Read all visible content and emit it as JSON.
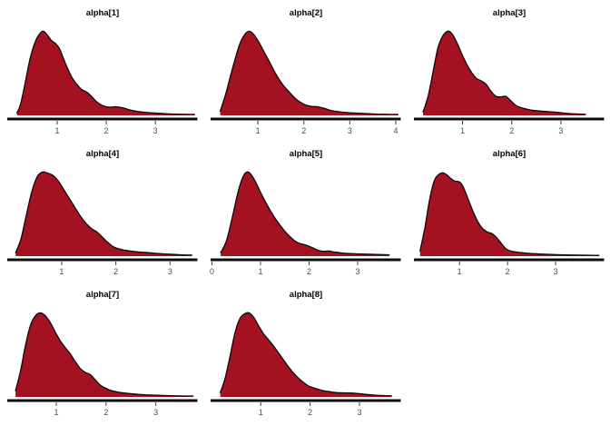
{
  "figure": {
    "background": "#ffffff",
    "rows": 3,
    "cols": 3
  },
  "chart_data": {
    "type": "area",
    "subtype": "density-small-multiples",
    "legend": "none",
    "grid_lines": "off",
    "style": {
      "fill_color": "#A41121",
      "outline_color": "#0a0a0a",
      "axis_line_color": "#0d0d0d",
      "tick_mark_color": "#404040",
      "tick_label_color": "#4d4d4d",
      "title_color": "#000000",
      "background_color": "#ffffff"
    },
    "panels": [
      {
        "title": "alpha[1]",
        "x_ticks": [
          1,
          2,
          3
        ],
        "x_range": [
          0.02,
          3.83
        ],
        "density": {
          "x": [
            0.18,
            0.25,
            0.35,
            0.45,
            0.55,
            0.65,
            0.72,
            0.8,
            0.88,
            0.97,
            1.05,
            1.12,
            1.2,
            1.3,
            1.4,
            1.5,
            1.6,
            1.7,
            1.8,
            1.9,
            2.0,
            2.1,
            2.2,
            2.35,
            2.5,
            2.7,
            2.9,
            3.2,
            3.5,
            3.8
          ],
          "y": [
            0.03,
            0.12,
            0.38,
            0.66,
            0.85,
            0.95,
            0.975,
            0.93,
            0.87,
            0.83,
            0.77,
            0.67,
            0.56,
            0.44,
            0.36,
            0.3,
            0.27,
            0.22,
            0.16,
            0.12,
            0.1,
            0.095,
            0.1,
            0.085,
            0.06,
            0.04,
            0.03,
            0.02,
            0.013,
            0.01
          ]
        }
      },
      {
        "title": "alpha[2]",
        "x_ticks": [
          1,
          2,
          3,
          4
        ],
        "x_range": [
          0.01,
          4.08
        ],
        "density": {
          "x": [
            0.18,
            0.3,
            0.45,
            0.6,
            0.72,
            0.82,
            0.92,
            1.02,
            1.12,
            1.25,
            1.4,
            1.55,
            1.7,
            1.85,
            2.0,
            2.15,
            2.3,
            2.45,
            2.6,
            2.8,
            3.0,
            3.3,
            3.6,
            3.85,
            4.05
          ],
          "y": [
            0.05,
            0.25,
            0.55,
            0.82,
            0.94,
            0.975,
            0.93,
            0.85,
            0.75,
            0.62,
            0.47,
            0.35,
            0.26,
            0.18,
            0.13,
            0.105,
            0.1,
            0.08,
            0.055,
            0.04,
            0.03,
            0.022,
            0.015,
            0.012,
            0.01
          ]
        }
      },
      {
        "title": "alpha[3]",
        "x_ticks": [
          1,
          2,
          3
        ],
        "x_range": [
          0.05,
          3.85
        ],
        "density": {
          "x": [
            0.2,
            0.3,
            0.4,
            0.5,
            0.6,
            0.7,
            0.78,
            0.88,
            0.98,
            1.08,
            1.18,
            1.28,
            1.38,
            1.48,
            1.58,
            1.68,
            1.78,
            1.88,
            1.98,
            2.1,
            2.25,
            2.4,
            2.6,
            2.8,
            3.0,
            3.2,
            3.5
          ],
          "y": [
            0.04,
            0.22,
            0.5,
            0.78,
            0.92,
            0.975,
            0.95,
            0.85,
            0.72,
            0.6,
            0.5,
            0.43,
            0.4,
            0.36,
            0.28,
            0.22,
            0.215,
            0.22,
            0.17,
            0.11,
            0.08,
            0.06,
            0.05,
            0.04,
            0.03,
            0.02,
            0.012
          ]
        }
      },
      {
        "title": "alpha[4]",
        "x_ticks": [
          1,
          2,
          3
        ],
        "x_range": [
          0.03,
          3.48
        ],
        "density": {
          "x": [
            0.15,
            0.25,
            0.35,
            0.45,
            0.55,
            0.65,
            0.75,
            0.85,
            0.95,
            1.05,
            1.15,
            1.25,
            1.35,
            1.45,
            1.55,
            1.65,
            1.75,
            1.85,
            1.95,
            2.05,
            2.2,
            2.4,
            2.6,
            2.8,
            3.0,
            3.2,
            3.4
          ],
          "y": [
            0.04,
            0.2,
            0.48,
            0.75,
            0.92,
            0.975,
            0.96,
            0.93,
            0.86,
            0.76,
            0.66,
            0.56,
            0.46,
            0.38,
            0.32,
            0.28,
            0.22,
            0.16,
            0.11,
            0.085,
            0.065,
            0.05,
            0.04,
            0.03,
            0.022,
            0.016,
            0.013
          ]
        }
      },
      {
        "title": "alpha[5]",
        "x_ticks": [
          0,
          1,
          2,
          3
        ],
        "x_range": [
          0.01,
          3.86
        ],
        "density": {
          "x": [
            0.18,
            0.3,
            0.42,
            0.54,
            0.64,
            0.72,
            0.8,
            0.9,
            1.0,
            1.1,
            1.2,
            1.3,
            1.4,
            1.5,
            1.6,
            1.7,
            1.8,
            1.9,
            2.0,
            2.1,
            2.2,
            2.3,
            2.4,
            2.5,
            2.7,
            2.9,
            3.1,
            3.4,
            3.65
          ],
          "y": [
            0.04,
            0.18,
            0.45,
            0.75,
            0.92,
            0.975,
            0.95,
            0.86,
            0.74,
            0.63,
            0.53,
            0.44,
            0.36,
            0.29,
            0.23,
            0.18,
            0.15,
            0.135,
            0.115,
            0.09,
            0.065,
            0.055,
            0.06,
            0.05,
            0.035,
            0.028,
            0.024,
            0.02,
            0.015
          ]
        }
      },
      {
        "title": "alpha[6]",
        "x_ticks": [
          1,
          2,
          3
        ],
        "x_range": [
          0.09,
          3.98
        ],
        "density": {
          "x": [
            0.18,
            0.28,
            0.38,
            0.48,
            0.58,
            0.66,
            0.74,
            0.82,
            0.9,
            1.0,
            1.08,
            1.18,
            1.28,
            1.38,
            1.48,
            1.58,
            1.68,
            1.78,
            1.88,
            1.98,
            2.1,
            2.3,
            2.5,
            2.8,
            3.1,
            3.4,
            3.7,
            3.9
          ],
          "y": [
            0.06,
            0.33,
            0.66,
            0.88,
            0.95,
            0.965,
            0.94,
            0.9,
            0.87,
            0.86,
            0.8,
            0.66,
            0.52,
            0.4,
            0.32,
            0.28,
            0.26,
            0.21,
            0.14,
            0.08,
            0.055,
            0.04,
            0.03,
            0.022,
            0.016,
            0.013,
            0.01,
            0.008
          ]
        }
      },
      {
        "title": "alpha[7]",
        "x_ticks": [
          1,
          2,
          3
        ],
        "x_range": [
          0.05,
          3.81
        ],
        "density": {
          "x": [
            0.18,
            0.28,
            0.38,
            0.48,
            0.58,
            0.68,
            0.78,
            0.88,
            0.98,
            1.08,
            1.18,
            1.28,
            1.38,
            1.48,
            1.58,
            1.68,
            1.78,
            1.88,
            1.98,
            2.1,
            2.25,
            2.45,
            2.65,
            2.9,
            3.2,
            3.5,
            3.75
          ],
          "y": [
            0.07,
            0.3,
            0.6,
            0.83,
            0.94,
            0.975,
            0.94,
            0.86,
            0.75,
            0.65,
            0.57,
            0.5,
            0.41,
            0.33,
            0.285,
            0.26,
            0.2,
            0.14,
            0.105,
            0.075,
            0.055,
            0.04,
            0.03,
            0.022,
            0.016,
            0.012,
            0.01
          ]
        }
      },
      {
        "title": "alpha[8]",
        "x_ticks": [
          1,
          2,
          3
        ],
        "x_range": [
          0.02,
          3.81
        ],
        "density": {
          "x": [
            0.18,
            0.28,
            0.38,
            0.48,
            0.58,
            0.68,
            0.76,
            0.86,
            0.96,
            1.06,
            1.16,
            1.26,
            1.36,
            1.46,
            1.56,
            1.66,
            1.76,
            1.86,
            1.96,
            2.1,
            2.25,
            2.4,
            2.55,
            2.7,
            2.85,
            3.0,
            3.15,
            3.4,
            3.65
          ],
          "y": [
            0.05,
            0.22,
            0.48,
            0.75,
            0.91,
            0.965,
            0.975,
            0.92,
            0.82,
            0.73,
            0.66,
            0.59,
            0.51,
            0.43,
            0.35,
            0.28,
            0.22,
            0.17,
            0.13,
            0.1,
            0.075,
            0.06,
            0.05,
            0.047,
            0.045,
            0.038,
            0.028,
            0.018,
            0.012
          ]
        }
      }
    ]
  }
}
